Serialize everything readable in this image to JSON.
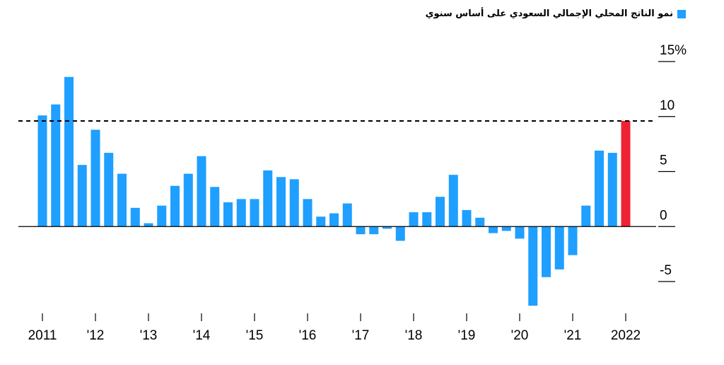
{
  "chart_data": {
    "type": "bar",
    "legend": [
      {
        "name": "نمو الناتج المحلي الإجمالي السعودي على أساس سنوي",
        "color": "#1f9fff"
      }
    ],
    "legend_position": "top-right",
    "x": [
      "2011 Q1",
      "2011 Q2",
      "2011 Q3",
      "2011 Q4",
      "2012 Q1",
      "2012 Q2",
      "2012 Q3",
      "2012 Q4",
      "2013 Q1",
      "2013 Q2",
      "2013 Q3",
      "2013 Q4",
      "2014 Q1",
      "2014 Q2",
      "2014 Q3",
      "2014 Q4",
      "2015 Q1",
      "2015 Q2",
      "2015 Q3",
      "2015 Q4",
      "2016 Q1",
      "2016 Q2",
      "2016 Q3",
      "2016 Q4",
      "2017 Q1",
      "2017 Q2",
      "2017 Q3",
      "2017 Q4",
      "2018 Q1",
      "2018 Q2",
      "2018 Q3",
      "2018 Q4",
      "2019 Q1",
      "2019 Q2",
      "2019 Q3",
      "2019 Q4",
      "2020 Q1",
      "2020 Q2",
      "2020 Q3",
      "2020 Q4",
      "2021 Q1",
      "2021 Q2",
      "2021 Q3",
      "2021 Q4",
      "2022 Q1"
    ],
    "values": [
      10.1,
      11.1,
      13.6,
      5.6,
      8.8,
      6.7,
      4.8,
      1.7,
      0.3,
      1.9,
      3.7,
      4.8,
      6.4,
      3.6,
      2.2,
      2.5,
      2.5,
      5.1,
      4.5,
      4.3,
      2.5,
      0.9,
      1.2,
      2.1,
      -0.7,
      -0.7,
      -0.2,
      -1.3,
      1.3,
      1.3,
      2.7,
      4.7,
      1.5,
      0.8,
      -0.6,
      -0.4,
      -1.1,
      -7.2,
      -4.6,
      -3.9,
      -2.6,
      1.9,
      6.9,
      6.7,
      9.6
    ],
    "highlight": {
      "index": 44,
      "color": "#ee2233"
    },
    "bar_color": "#1f9fff",
    "reference_line": {
      "value": 9.6,
      "style": "dashed"
    },
    "x_tick_labels": [
      {
        "label": "2011",
        "at": "2011 Q1"
      },
      {
        "label": "'12",
        "at": "2012 Q1"
      },
      {
        "label": "'13",
        "at": "2013 Q1"
      },
      {
        "label": "'14",
        "at": "2014 Q1"
      },
      {
        "label": "'15",
        "at": "2015 Q1"
      },
      {
        "label": "'16",
        "at": "2016 Q1"
      },
      {
        "label": "'17",
        "at": "2017 Q1"
      },
      {
        "label": "'18",
        "at": "2018 Q1"
      },
      {
        "label": "'19",
        "at": "2019 Q1"
      },
      {
        "label": "'20",
        "at": "2020 Q1"
      },
      {
        "label": "'21",
        "at": "2021 Q1"
      },
      {
        "label": "2022",
        "at": "2022 Q1"
      }
    ],
    "y_ticks": [
      {
        "value": 15,
        "label": "15%"
      },
      {
        "value": 10,
        "label": "10"
      },
      {
        "value": 5,
        "label": "5"
      },
      {
        "value": 0,
        "label": "0"
      },
      {
        "value": -5,
        "label": "-5"
      }
    ],
    "ylim": [
      -7.5,
      15
    ],
    "grid": false,
    "axis_position": "right"
  }
}
